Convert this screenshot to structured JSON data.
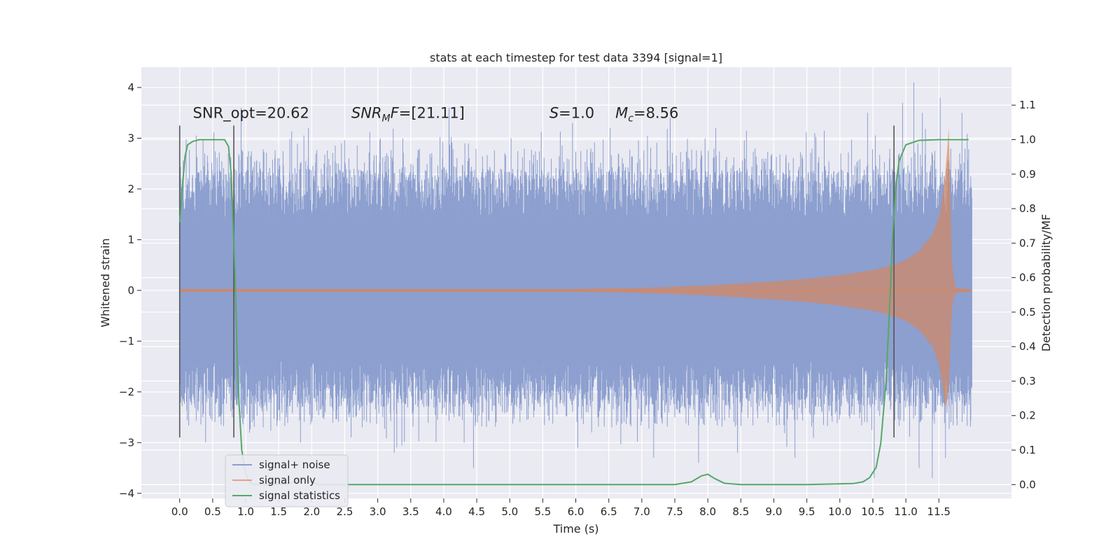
{
  "chart_data": {
    "type": "line",
    "title": "stats at each timestep for test data 3394 [signal=1]",
    "xlabel": "Time (s)",
    "ylabel": "Whitened strain",
    "y2label": "Detection probability/MF",
    "xlim": [
      -0.58,
      12.6
    ],
    "ylim": [
      -4.1,
      4.4
    ],
    "y2lim": [
      -0.04,
      1.21
    ],
    "grid": true,
    "x_ticks": [
      0.0,
      0.5,
      1.0,
      1.5,
      2.0,
      2.5,
      3.0,
      3.5,
      4.0,
      4.5,
      5.0,
      5.5,
      6.0,
      6.5,
      7.0,
      7.5,
      8.0,
      8.5,
      9.0,
      9.5,
      10.0,
      10.5,
      11.0,
      11.5
    ],
    "x_tick_labels": [
      "0.0",
      "0.5",
      "1.0",
      "1.5",
      "2.0",
      "2.5",
      "3.0",
      "3.5",
      "4.0",
      "4.5",
      "5.0",
      "5.5",
      "6.0",
      "6.5",
      "7.0",
      "7.5",
      "8.0",
      "8.5",
      "9.0",
      "9.5",
      "10.0",
      "10.5",
      "11.0",
      "11.5"
    ],
    "y_ticks": [
      4,
      3,
      2,
      1,
      0,
      -1,
      -2,
      -3,
      -4
    ],
    "y_tick_labels": [
      "4",
      "3",
      "2",
      "1",
      "0",
      "−1",
      "−2",
      "−3",
      "−4"
    ],
    "y2_ticks": [
      1.1,
      1.0,
      0.9,
      0.8,
      0.7,
      0.6,
      0.5,
      0.4,
      0.3,
      0.2,
      0.1,
      0.0
    ],
    "y2_tick_labels": [
      "1.1",
      "1.0",
      "0.9",
      "0.8",
      "0.7",
      "0.6",
      "0.5",
      "0.4",
      "0.3",
      "0.2",
      "0.1",
      "0.0"
    ],
    "series": [
      {
        "name": "signal+ noise",
        "color": "#8c9fcf",
        "axis": "left",
        "description_values": {
          "x_range": [
            0.0,
            12.0
          ],
          "typical_amplitude": 1.4,
          "spike_peaks_x": [
            0.38,
            0.93,
            1.95,
            2.45,
            3.04,
            3.38,
            4.08,
            4.32,
            5.02,
            5.95,
            6.52,
            7.43,
            8.12,
            9.62,
            10.42,
            10.95,
            11.12,
            11.25,
            11.52,
            11.68,
            11.85
          ],
          "spike_peaks_y": [
            2.7,
            3.6,
            3.2,
            2.9,
            3.0,
            3.0,
            3.6,
            2.9,
            3.0,
            3.3,
            3.2,
            3.4,
            3.2,
            3.1,
            3.5,
            3.7,
            4.1,
            3.5,
            3.8,
            2.8,
            3.5
          ],
          "spike_troughs_x": [
            0.35,
            1.83,
            3.25,
            4.45,
            6.03,
            7.18,
            7.86,
            8.45,
            9.32,
            10.52,
            11.2,
            11.4,
            11.6
          ],
          "spike_troughs_y": [
            -2.5,
            -3.0,
            -3.2,
            -3.5,
            -3.1,
            -3.3,
            -3.4,
            -3.2,
            -3.3,
            -3.7,
            -3.5,
            -3.7,
            -3.3
          ]
        }
      },
      {
        "name": "signal only",
        "color": "#dd8452",
        "axis": "left",
        "envelope_x": [
          0.0,
          6.0,
          7.0,
          8.0,
          8.5,
          9.0,
          9.5,
          10.0,
          10.5,
          10.8,
          11.0,
          11.2,
          11.4,
          11.5,
          11.55,
          11.6,
          11.65,
          11.7,
          11.75,
          12.0
        ],
        "envelope_y": [
          0.03,
          0.03,
          0.05,
          0.1,
          0.14,
          0.18,
          0.23,
          0.3,
          0.4,
          0.5,
          0.6,
          0.78,
          1.1,
          1.45,
          1.8,
          2.35,
          3.2,
          0.5,
          0.05,
          0.02
        ]
      },
      {
        "name": "signal statistics",
        "color": "#55a868",
        "axis": "right",
        "x": [
          0.0,
          0.04,
          0.08,
          0.12,
          0.2,
          0.3,
          0.5,
          0.68,
          0.74,
          0.78,
          0.84,
          0.88,
          0.94,
          1.0,
          1.05,
          1.1,
          1.2,
          1.4,
          1.6,
          1.75,
          1.85,
          1.95,
          2.1,
          2.5,
          4.0,
          6.0,
          7.5,
          7.75,
          7.9,
          8.0,
          8.1,
          8.25,
          8.5,
          9.5,
          10.2,
          10.35,
          10.45,
          10.55,
          10.62,
          10.7,
          10.75,
          10.8,
          10.85,
          10.9,
          11.0,
          11.2,
          11.5,
          11.95
        ],
        "y": [
          0.76,
          0.86,
          0.95,
          0.985,
          0.995,
          1.0,
          1.0,
          1.0,
          0.98,
          0.9,
          0.6,
          0.3,
          0.1,
          0.03,
          0.01,
          0.002,
          0.0,
          0.0,
          0.001,
          0.008,
          0.02,
          0.01,
          0.0,
          0.0,
          0.0,
          0.0,
          0.0,
          0.008,
          0.025,
          0.03,
          0.018,
          0.004,
          0.0,
          0.0,
          0.003,
          0.008,
          0.02,
          0.05,
          0.12,
          0.3,
          0.5,
          0.72,
          0.87,
          0.94,
          0.985,
          0.998,
          1.0,
          1.0
        ]
      }
    ],
    "vertical_lines": [
      {
        "x": 0.0,
        "y_from": -2.9,
        "y_to": 3.25,
        "color": "#555555"
      },
      {
        "x": 0.82,
        "y_from": -2.9,
        "y_to": 3.25,
        "color": "#555555"
      },
      {
        "x": 10.82,
        "y_from": -2.9,
        "y_to": 3.25,
        "color": "#555555"
      }
    ],
    "annotations": [
      {
        "text": "SNR_opt=20.62",
        "x": 0.2,
        "y": 3.4
      },
      {
        "text_main": "SNR",
        "text_sub": "M",
        "text_tail": "F=[21.11]",
        "x": 2.6,
        "y": 3.4
      },
      {
        "text": "S=1.0",
        "x": 5.6,
        "y": 3.4
      },
      {
        "text_main": "M",
        "text_sub": "c",
        "text_tail": "=8.56",
        "x": 6.6,
        "y": 3.4
      }
    ],
    "legend": {
      "placement": "lower-left",
      "entries": [
        "signal+ noise",
        "signal only",
        "signal statistics"
      ]
    }
  }
}
